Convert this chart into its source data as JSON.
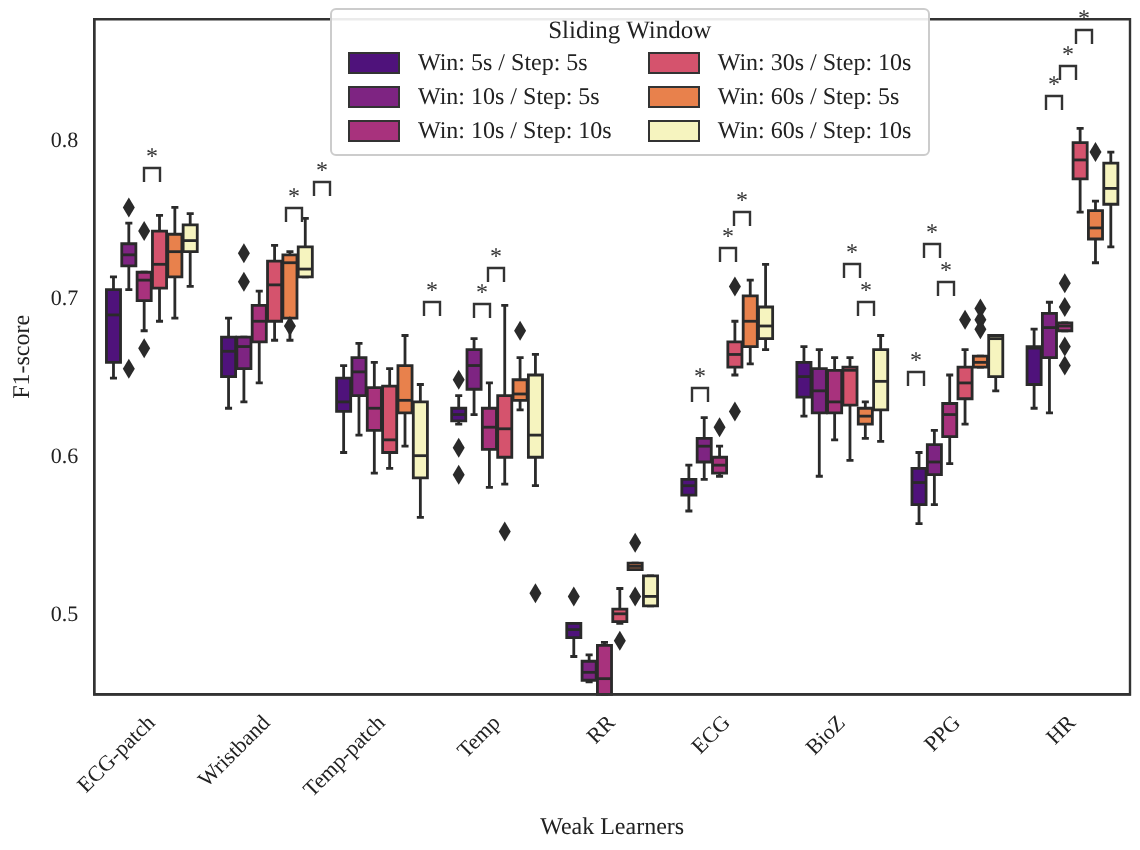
{
  "chart_data": {
    "type": "box",
    "xlabel": "Weak Learners",
    "ylabel": "F1-score",
    "legend_title": "Sliding Window",
    "legend": "top",
    "grid": false,
    "categories": [
      "ECG-patch",
      "Wristband",
      "Temp-patch",
      "Temp",
      "RR",
      "ECG",
      "BioZ",
      "PPG",
      "HR"
    ],
    "ylim": [
      0.45,
      0.877
    ],
    "yticks": [
      0.5,
      0.6,
      0.7,
      0.8
    ],
    "series": [
      {
        "name": "Win: 5s / Step: 5s",
        "color": "#4f127b",
        "boxes": [
          {
            "low": 0.65,
            "q1": 0.66,
            "median": 0.69,
            "q3": 0.706,
            "high": 0.714
          },
          {
            "low": 0.631,
            "q1": 0.651,
            "median": 0.667,
            "q3": 0.676,
            "high": 0.688
          },
          {
            "low": 0.603,
            "q1": 0.629,
            "median": 0.635,
            "q3": 0.65,
            "high": 0.658
          },
          {
            "low": 0.621,
            "q1": 0.623,
            "median": 0.627,
            "q3": 0.631,
            "high": 0.639,
            "outliers": [
              0.649,
              0.606,
              0.589
            ]
          },
          {
            "low": 0.474,
            "q1": 0.486,
            "median": 0.491,
            "q3": 0.495,
            "high": 0.495,
            "outliers": [
              0.512
            ]
          },
          {
            "low": 0.566,
            "q1": 0.576,
            "median": 0.582,
            "q3": 0.586,
            "high": 0.595
          },
          {
            "low": 0.626,
            "q1": 0.638,
            "median": 0.651,
            "q3": 0.66,
            "high": 0.67
          },
          {
            "low": 0.558,
            "q1": 0.57,
            "median": 0.584,
            "q3": 0.593,
            "high": 0.603
          },
          {
            "low": 0.631,
            "q1": 0.646,
            "median": 0.669,
            "q3": 0.67,
            "high": 0.681
          }
        ]
      },
      {
        "name": "Win: 10s / Step: 5s",
        "color": "#7e2482",
        "boxes": [
          {
            "low": 0.706,
            "q1": 0.721,
            "median": 0.728,
            "q3": 0.735,
            "high": 0.748,
            "outliers": [
              0.758,
              0.656
            ]
          },
          {
            "low": 0.635,
            "q1": 0.656,
            "median": 0.67,
            "q3": 0.676,
            "high": 0.676,
            "outliers": [
              0.729,
              0.711
            ]
          },
          {
            "low": 0.614,
            "q1": 0.639,
            "median": 0.654,
            "q3": 0.663,
            "high": 0.672
          },
          {
            "low": 0.627,
            "q1": 0.643,
            "median": 0.658,
            "q3": 0.668,
            "high": 0.675
          },
          {
            "low": 0.458,
            "q1": 0.459,
            "median": 0.464,
            "q3": 0.471,
            "high": 0.475
          },
          {
            "low": 0.586,
            "q1": 0.597,
            "median": 0.607,
            "q3": 0.612,
            "high": 0.625
          },
          {
            "low": 0.588,
            "q1": 0.628,
            "median": 0.642,
            "q3": 0.656,
            "high": 0.668
          },
          {
            "low": 0.57,
            "q1": 0.589,
            "median": 0.597,
            "q3": 0.608,
            "high": 0.617
          },
          {
            "low": 0.628,
            "q1": 0.663,
            "median": 0.682,
            "q3": 0.691,
            "high": 0.698
          }
        ]
      },
      {
        "name": "Win: 10s / Step: 10s",
        "color": "#a8327d",
        "boxes": [
          {
            "low": 0.68,
            "q1": 0.699,
            "median": 0.712,
            "q3": 0.717,
            "high": 0.717,
            "outliers": [
              0.743,
              0.669
            ]
          },
          {
            "low": 0.647,
            "q1": 0.673,
            "median": 0.686,
            "q3": 0.696,
            "high": 0.705
          },
          {
            "low": 0.59,
            "q1": 0.617,
            "median": 0.631,
            "q3": 0.644,
            "high": 0.66
          },
          {
            "low": 0.581,
            "q1": 0.605,
            "median": 0.619,
            "q3": 0.631,
            "high": 0.647
          },
          {
            "low": 0.45,
            "q1": 0.45,
            "median": 0.46,
            "q3": 0.481,
            "high": 0.483
          },
          {
            "low": 0.588,
            "q1": 0.59,
            "median": 0.595,
            "q3": 0.6,
            "high": 0.607,
            "outliers": [
              0.619
            ]
          },
          {
            "low": 0.611,
            "q1": 0.628,
            "median": 0.635,
            "q3": 0.655,
            "high": 0.663
          },
          {
            "low": 0.596,
            "q1": 0.613,
            "median": 0.627,
            "q3": 0.634,
            "high": 0.652
          },
          {
            "low": 0.68,
            "q1": 0.68,
            "median": 0.683,
            "q3": 0.685,
            "high": 0.685,
            "outliers": [
              0.71,
              0.695,
              0.67,
              0.658
            ]
          }
        ]
      },
      {
        "name": "Win: 30s / Step: 10s",
        "color": "#d5536d",
        "boxes": [
          {
            "low": 0.686,
            "q1": 0.707,
            "median": 0.722,
            "q3": 0.743,
            "high": 0.753
          },
          {
            "low": 0.674,
            "q1": 0.686,
            "median": 0.709,
            "q3": 0.724,
            "high": 0.734
          },
          {
            "low": 0.593,
            "q1": 0.603,
            "median": 0.611,
            "q3": 0.645,
            "high": 0.656
          },
          {
            "low": 0.583,
            "q1": 0.6,
            "median": 0.618,
            "q3": 0.639,
            "high": 0.696,
            "outliers": [
              0.553
            ]
          },
          {
            "low": 0.495,
            "q1": 0.496,
            "median": 0.501,
            "q3": 0.504,
            "high": 0.517,
            "outliers": [
              0.484
            ]
          },
          {
            "low": 0.652,
            "q1": 0.657,
            "median": 0.665,
            "q3": 0.673,
            "high": 0.686,
            "outliers": [
              0.708,
              0.629
            ]
          },
          {
            "low": 0.598,
            "q1": 0.633,
            "median": 0.655,
            "q3": 0.657,
            "high": 0.663
          },
          {
            "low": 0.621,
            "q1": 0.637,
            "median": 0.647,
            "q3": 0.657,
            "high": 0.668,
            "outliers": [
              0.687
            ]
          },
          {
            "low": 0.755,
            "q1": 0.776,
            "median": 0.788,
            "q3": 0.799,
            "high": 0.808
          }
        ]
      },
      {
        "name": "Win: 60s / Step: 5s",
        "color": "#e8814c",
        "boxes": [
          {
            "low": 0.688,
            "q1": 0.714,
            "median": 0.73,
            "q3": 0.741,
            "high": 0.758
          },
          {
            "low": 0.674,
            "q1": 0.688,
            "median": 0.723,
            "q3": 0.728,
            "high": 0.73,
            "outliers": [
              0.683
            ]
          },
          {
            "low": 0.607,
            "q1": 0.628,
            "median": 0.636,
            "q3": 0.658,
            "high": 0.677
          },
          {
            "low": 0.63,
            "q1": 0.636,
            "median": 0.64,
            "q3": 0.649,
            "high": 0.663,
            "outliers": [
              0.68
            ]
          },
          {
            "low": 0.529,
            "q1": 0.529,
            "median": 0.531,
            "q3": 0.533,
            "high": 0.533,
            "outliers": [
              0.546,
              0.512
            ]
          },
          {
            "low": 0.659,
            "q1": 0.67,
            "median": 0.686,
            "q3": 0.702,
            "high": 0.712
          },
          {
            "low": 0.612,
            "q1": 0.621,
            "median": 0.626,
            "q3": 0.631,
            "high": 0.635
          },
          {
            "low": 0.657,
            "q1": 0.657,
            "median": 0.66,
            "q3": 0.664,
            "high": 0.664,
            "outliers": [
              0.694,
              0.687,
              0.681
            ]
          },
          {
            "low": 0.723,
            "q1": 0.738,
            "median": 0.745,
            "q3": 0.756,
            "high": 0.762,
            "outliers": [
              0.793
            ]
          }
        ]
      },
      {
        "name": "Win: 60s / Step: 10s",
        "color": "#f6f4bf",
        "boxes": [
          {
            "low": 0.708,
            "q1": 0.73,
            "median": 0.737,
            "q3": 0.747,
            "high": 0.754
          },
          {
            "low": 0.714,
            "q1": 0.714,
            "median": 0.719,
            "q3": 0.733,
            "high": 0.751
          },
          {
            "low": 0.562,
            "q1": 0.587,
            "median": 0.601,
            "q3": 0.635,
            "high": 0.646
          },
          {
            "low": 0.582,
            "q1": 0.6,
            "median": 0.614,
            "q3": 0.652,
            "high": 0.665,
            "outliers": [
              0.514
            ]
          },
          {
            "low": 0.506,
            "q1": 0.506,
            "median": 0.512,
            "q3": 0.525,
            "high": 0.525
          },
          {
            "low": 0.668,
            "q1": 0.675,
            "median": 0.683,
            "q3": 0.695,
            "high": 0.722
          },
          {
            "low": 0.61,
            "q1": 0.63,
            "median": 0.648,
            "q3": 0.668,
            "high": 0.677
          },
          {
            "low": 0.642,
            "q1": 0.651,
            "median": 0.675,
            "q3": 0.677,
            "high": 0.677
          },
          {
            "low": 0.733,
            "q1": 0.76,
            "median": 0.77,
            "q3": 0.786,
            "high": 0.793
          }
        ]
      }
    ],
    "annotations": [
      "*",
      "*",
      "*",
      "*",
      "*",
      "*",
      "*",
      "*",
      "*",
      "*",
      "*",
      "*",
      "*",
      "*",
      "*",
      "*",
      "*"
    ]
  }
}
